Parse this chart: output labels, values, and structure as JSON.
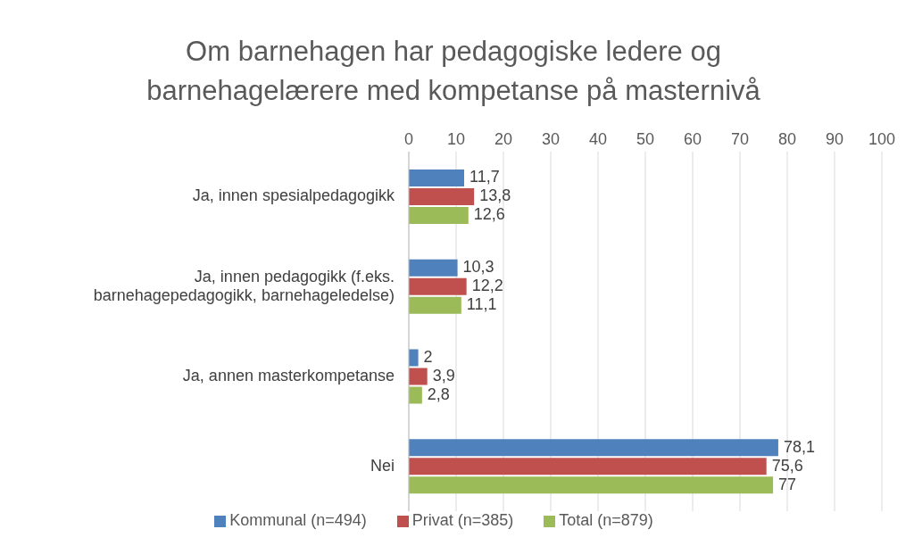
{
  "chart_data": {
    "type": "bar",
    "orientation": "horizontal",
    "title": "Om barnehagen har pedagogiske ledere og barnehagelærere med kompetanse på masternivå",
    "categories": [
      "Ja, innen spesialpedagogikk",
      "Ja, innen pedagogikk (f.eks. barnehagepedagogikk, barnehageledelse)",
      "Ja, annen masterkompetanse",
      "Nei"
    ],
    "series": [
      {
        "name": "Kommunal (n=494)",
        "color": "#4f81bd",
        "values": [
          11.7,
          10.3,
          2,
          78.1
        ],
        "value_labels": [
          "11,7",
          "10,3",
          "2",
          "78,1"
        ]
      },
      {
        "name": "Privat (n=385)",
        "color": "#c0504d",
        "values": [
          13.8,
          12.2,
          3.9,
          75.6
        ],
        "value_labels": [
          "13,8",
          "12,2",
          "3,9",
          "75,6"
        ]
      },
      {
        "name": "Total (n=879)",
        "color": "#9bbb59",
        "values": [
          12.6,
          11.1,
          2.8,
          77
        ],
        "value_labels": [
          "12,6",
          "11,1",
          "2,8",
          "77"
        ]
      }
    ],
    "xlim": [
      0,
      100
    ],
    "xticks": [
      0,
      10,
      20,
      30,
      40,
      50,
      60,
      70,
      80,
      90,
      100
    ],
    "grid": "x",
    "legend": "bottom"
  }
}
